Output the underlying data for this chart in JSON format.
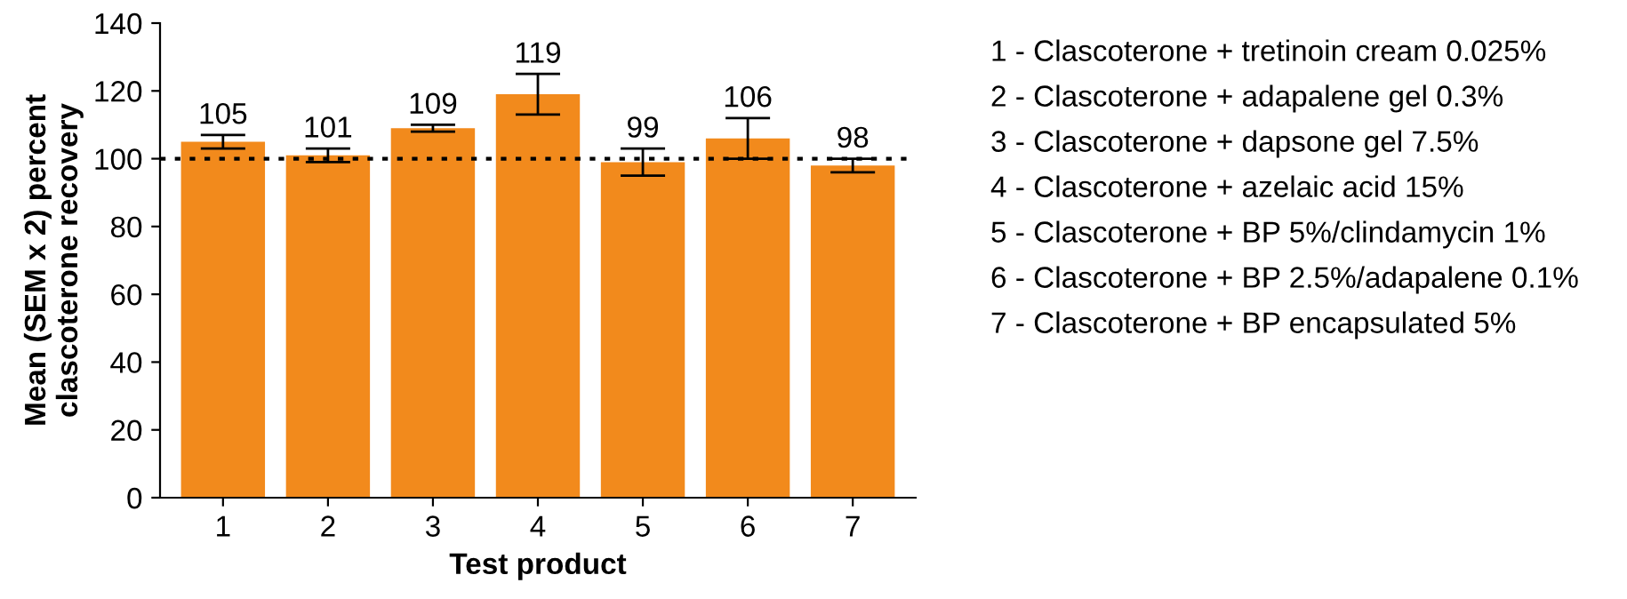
{
  "chart_data": {
    "type": "bar",
    "xlabel": "Test product",
    "ylabel": "Mean (SEM x 2) percent\nclascoterone recovery",
    "categories": [
      "1",
      "2",
      "3",
      "4",
      "5",
      "6",
      "7"
    ],
    "values": [
      105,
      101,
      109,
      119,
      99,
      106,
      98
    ],
    "errors": [
      2,
      2,
      1,
      6,
      4,
      6,
      2
    ],
    "color": "#f28a1c",
    "data_labels": true,
    "ylim": [
      0,
      140
    ],
    "yticks": [
      0,
      20,
      40,
      60,
      80,
      100,
      120,
      140
    ],
    "grid": false,
    "ref_lines": [
      {
        "axis": "y",
        "value": 100,
        "line_style": "dotted",
        "color": "#000000"
      }
    ],
    "annotations": [
      "1 - Clascoterone + tretinoin cream 0.025%",
      "2 - Clascoterone + adapalene gel 0.3%",
      "3 - Clascoterone + dapsone gel 7.5%",
      "4 - Clascoterone + azelaic acid 15%",
      "5 - Clascoterone + BP 5%/clindamycin 1%",
      "6 - Clascoterone + BP 2.5%/adapalene 0.1%",
      "7 - Clascoterone + BP encapsulated 5%"
    ]
  }
}
